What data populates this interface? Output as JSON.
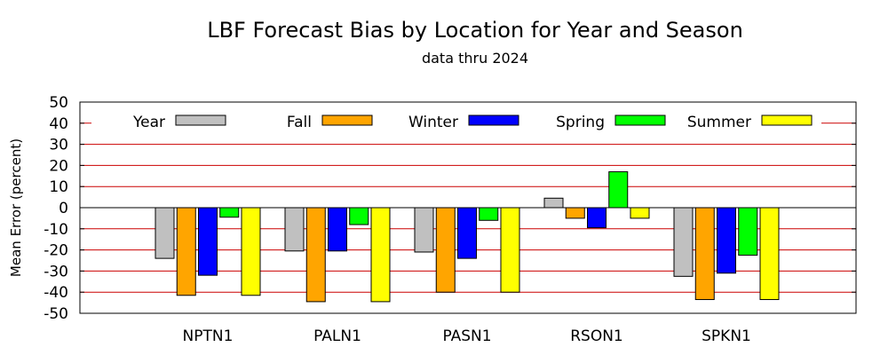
{
  "chart_data": {
    "type": "bar",
    "title": "LBF Forecast Bias by Location for Year and Season",
    "subtitle": "data thru 2024",
    "xlabel": "",
    "ylabel": "Mean Error (percent)",
    "ylim": [
      -50,
      50
    ],
    "yticks": [
      -50,
      -40,
      -30,
      -20,
      -10,
      0,
      10,
      20,
      30,
      40,
      50
    ],
    "grid": true,
    "legend_position": "top",
    "categories": [
      "NPTN1",
      "PALN1",
      "PASN1",
      "RSON1",
      "SPKN1"
    ],
    "series": [
      {
        "name": "Year",
        "color": "#c0c0c0",
        "values": [
          -24,
          -20.5,
          -21,
          4.5,
          -32.5
        ]
      },
      {
        "name": "Fall",
        "color": "#ffa500",
        "values": [
          -41.5,
          -44.5,
          -40,
          -5,
          -43.5
        ]
      },
      {
        "name": "Winter",
        "color": "#0000ff",
        "values": [
          -32,
          -20.5,
          -24,
          -9.5,
          -31
        ]
      },
      {
        "name": "Spring",
        "color": "#00ff00",
        "values": [
          -4.5,
          -8,
          -6,
          17,
          -22.5
        ]
      },
      {
        "name": "Summer",
        "color": "#ffff00",
        "values": [
          -41.5,
          -44.5,
          -40,
          -5,
          -43.5
        ]
      }
    ],
    "gridline_color": "#cc0000"
  }
}
